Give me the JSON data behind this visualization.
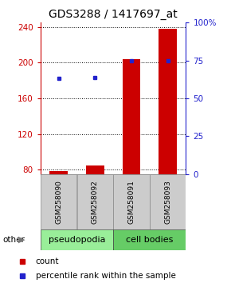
{
  "title": "GDS3288 / 1417697_at",
  "samples": [
    "GSM258090",
    "GSM258092",
    "GSM258091",
    "GSM258093"
  ],
  "count_values": [
    78,
    85,
    204,
    238
  ],
  "percentile_values": [
    63,
    64,
    75,
    75
  ],
  "ylim_left": [
    75,
    245
  ],
  "yticks_left": [
    80,
    120,
    160,
    200,
    240
  ],
  "ylim_right": [
    0,
    100
  ],
  "yticks_right": [
    0,
    25,
    50,
    75,
    100
  ],
  "bar_color": "#cc0000",
  "dot_color": "#2222cc",
  "left_tick_color": "#cc0000",
  "right_tick_color": "#2222cc",
  "title_fontsize": 10,
  "bar_width": 0.5,
  "pseudo_label": "pseudopodia",
  "cell_label": "cell bodies",
  "other_label": "other",
  "legend_count": "count",
  "legend_pct": "percentile rank within the sample",
  "pseudo_color": "#99EE99",
  "cell_color": "#66CC66",
  "sample_box_color": "#cccccc",
  "sample_box_edge": "#888888"
}
